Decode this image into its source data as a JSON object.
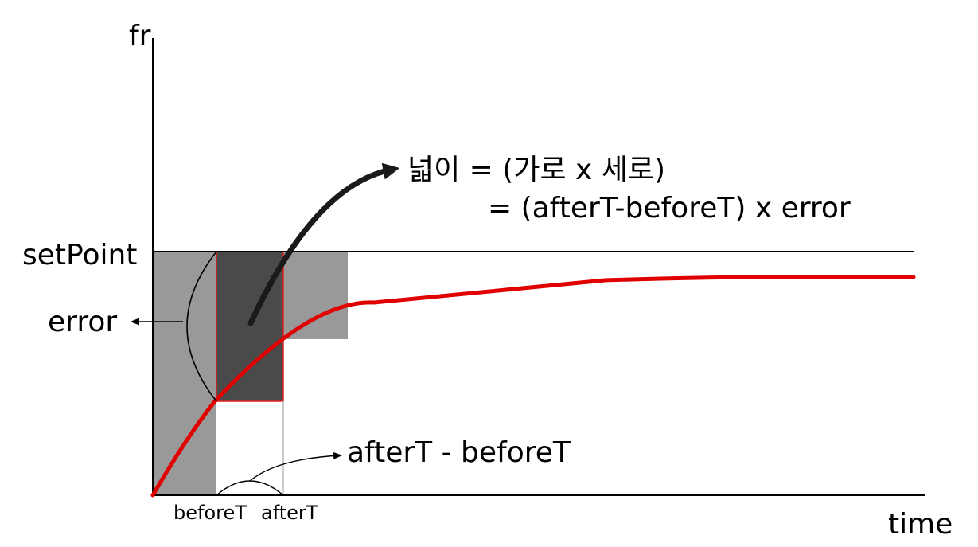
{
  "axes": {
    "y_label": "fr",
    "x_label": "time"
  },
  "labels": {
    "set_point": "setPoint",
    "error": "error",
    "before_t": "beforeT",
    "after_t": "afterT",
    "interval": "afterT - beforeT"
  },
  "formula": {
    "line1": "넓이 = (가로 x 세로)",
    "line2": "= (afterT-beforeT) x error"
  },
  "colors": {
    "axis": "#000000",
    "response_curve": "#e00000",
    "error_area_fill": "#999999",
    "highlight_fill": "#4a4a4a",
    "highlight_border": "#e02020",
    "arrow": "#1a1a1a"
  }
}
